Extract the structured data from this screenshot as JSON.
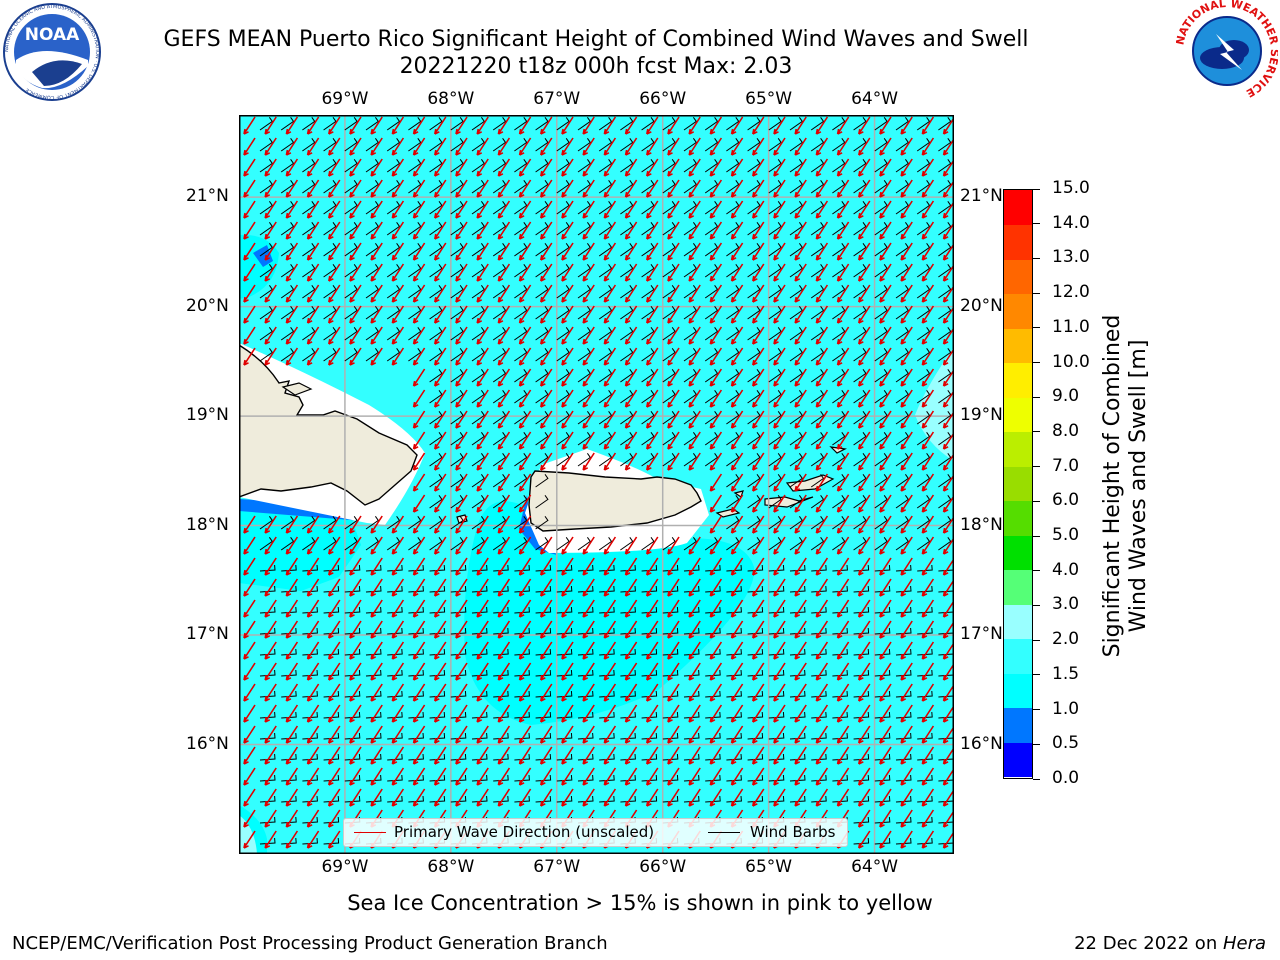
{
  "title": {
    "line1": "GEFS MEAN Puerto Rico Significant Height of Combined Wind Waves and Swell",
    "line2": "20221220 t18z 000h fcst   Max: 2.03"
  },
  "logos": {
    "left": {
      "text": "NOAA",
      "ring_text": "NATIONAL OCEANIC AND ATMOSPHERIC ADMINISTRATION · U.S. DEPARTMENT OF COMMERCE"
    },
    "right": {
      "ring_text": "NATIONAL WEATHER SERVICE"
    }
  },
  "map": {
    "lon_ticks": [
      "69°W",
      "68°W",
      "67°W",
      "66°W",
      "65°W",
      "64°W"
    ],
    "lat_ticks": [
      "21°N",
      "20°N",
      "19°N",
      "18°N",
      "17°N",
      "16°N"
    ],
    "lon_range": [
      -70.0,
      -63.25
    ],
    "lat_range": [
      15.0,
      21.75
    ],
    "grid": true,
    "background_field_class": "1.5-2.0 m",
    "colors": {
      "ocean_main": "#33ffff",
      "ocean_low": "#00ffff",
      "ocean_high": "#99ffff",
      "ocean_bin_0_5": "#0077ff",
      "land": "#efecdc",
      "wave_arrow": "#e00000",
      "barb": "#000000"
    }
  },
  "legend": {
    "wave_label": "Primary Wave Direction (unscaled)",
    "barb_label": "Wind Barbs",
    "position": "bottom-center"
  },
  "colorbar": {
    "label_line1": "Significant Height of Combined",
    "label_line2": "Wind Waves and Swell [m]",
    "ticks": [
      "0.0",
      "0.5",
      "1.0",
      "1.5",
      "2.0",
      "3.0",
      "4.0",
      "5.0",
      "6.0",
      "7.0",
      "8.0",
      "9.0",
      "10.0",
      "11.0",
      "12.0",
      "13.0",
      "14.0",
      "15.0"
    ],
    "colors": [
      "#0000ff",
      "#0077ff",
      "#00ffff",
      "#33ffff",
      "#99ffff",
      "#55ff77",
      "#00e000",
      "#55dd00",
      "#99dd00",
      "#bbee00",
      "#eeff00",
      "#ffee00",
      "#ffbb00",
      "#ff8800",
      "#ff6600",
      "#ff3300",
      "#ff0000"
    ]
  },
  "footer": {
    "caption": "Sea Ice Concentration > 15% is shown in pink to yellow",
    "left": "NCEP/EMC/Verification Post Processing Product Generation Branch",
    "right_prefix": "22 Dec 2022 on ",
    "right_machine": "Hera"
  }
}
